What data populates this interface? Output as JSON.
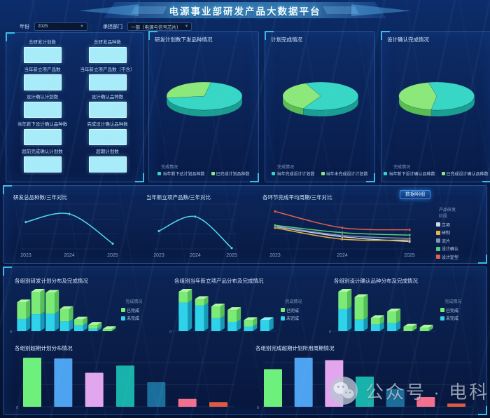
{
  "header": {
    "title": "电源事业部研发产品大数据平台"
  },
  "filters": {
    "year_label": "年份",
    "year_value": "2025",
    "dept_label": "承担部门",
    "dept_value": "一部（电源与信号芯片）"
  },
  "stats": {
    "items": [
      {
        "label": "总研发计划数"
      },
      {
        "label": "总研发品种数"
      },
      {
        "label": "当年新立项产品数"
      },
      {
        "label": "当年新立项产品数（不含）"
      },
      {
        "label": "设计确认计划数"
      },
      {
        "label": "设计确认品种数"
      },
      {
        "label": "当年新下设计确认品种数"
      },
      {
        "label": "完成设计确认品种数"
      },
      {
        "label": "超前完成确认计划数"
      },
      {
        "label": "超期计划数"
      }
    ]
  },
  "watermark": {
    "icon": "wechat-icon",
    "text": "公众号 · 电科芯片"
  },
  "colors": {
    "accent": "#41d2ff",
    "panel_border": "#3874c6",
    "stat_box": "#a9ecf9",
    "pie_teal": "#38d6c4",
    "pie_green": "#8ce87a",
    "line_cyan": "#4fd8f0"
  },
  "chart_data": [
    {
      "id": "pie-issue",
      "type": "pie",
      "title": "研发计划数下发品种情况",
      "legend_title": "完成情况",
      "rotate_deg": 280,
      "slices": [
        {
          "label": "当年新下达计划品种数",
          "value": 70,
          "color": "#38d6c4",
          "side_color": "#1b9e92"
        },
        {
          "label": "已完成计划品种数",
          "value": 30,
          "color": "#8ce87a",
          "side_color": "#58bd52"
        }
      ]
    },
    {
      "id": "pie-complete",
      "type": "pie",
      "title": "计划完成情况",
      "legend_title": "完成情况",
      "rotate_deg": 247,
      "slices": [
        {
          "label": "当年完成设计计划数",
          "value": 64,
          "color": "#38d6c4",
          "side_color": "#1b9e92"
        },
        {
          "label": "当年未完成设计计划数",
          "value": 36,
          "color": "#8ce87a",
          "side_color": "#58bd52"
        }
      ]
    },
    {
      "id": "pie-confirm",
      "type": "pie",
      "title": "设计确认完成情况",
      "legend_title": "完成情况",
      "rotate_deg": 257,
      "slices": [
        {
          "label": "当年新下设计确认品种数",
          "value": 56,
          "color": "#38d6c4",
          "side_color": "#1b9e92"
        },
        {
          "label": "已完成设计确认品种数",
          "value": 44,
          "color": "#8ce87a",
          "side_color": "#58bd52"
        }
      ]
    },
    {
      "id": "line-species",
      "type": "line",
      "title": "研发总品种数/三年对比",
      "x": [
        "2023",
        "2024",
        "2025"
      ],
      "ylim": [
        0,
        100
      ],
      "grid": true,
      "series": [
        {
          "name": "研发总品种数",
          "color": "#4fd8f0",
          "values": [
            60,
            78,
            12
          ]
        }
      ]
    },
    {
      "id": "line-newprod",
      "type": "line",
      "title": "当年新立项产品数/三年对比",
      "x": [
        "2023",
        "2024",
        "2025"
      ],
      "ylim": [
        0,
        100
      ],
      "grid": true,
      "series": [
        {
          "name": "当年新立项产品数",
          "color": "#4fd8f0",
          "values": [
            40,
            72,
            2
          ]
        }
      ]
    },
    {
      "id": "line-cycle",
      "type": "line",
      "title": "各环节完成平均周期/三年对比",
      "detail_button": "数据明细",
      "legend_title": "产品研发阶段",
      "legend_position": "right",
      "x": [
        "2023",
        "2024",
        "2025"
      ],
      "ylim": [
        0,
        110
      ],
      "grid": true,
      "series": [
        {
          "name": "立项",
          "color": "#cfd8e6",
          "values": [
            55,
            30,
            18
          ]
        },
        {
          "name": "研制",
          "color": "#e8b440",
          "values": [
            52,
            24,
            22
          ]
        },
        {
          "name": "流片",
          "color": "#7e93b8",
          "values": [
            56,
            33,
            26
          ]
        },
        {
          "name": "设计确认",
          "color": "#58c97c",
          "values": [
            58,
            40,
            34
          ]
        },
        {
          "name": "设计定型",
          "color": "#e2604e",
          "values": [
            92,
            52,
            47
          ]
        }
      ]
    },
    {
      "id": "stack-plan",
      "type": "bar",
      "variant": "stacked-3d",
      "title": "各组别研发计划分布及完成情况",
      "legend_title": "完成情况",
      "series": [
        {
          "name": "已完成",
          "color": "#7bea77",
          "top_color": "#b0f6a2",
          "side_color": "#55c057",
          "values": [
            35,
            47,
            44,
            26,
            12,
            8,
            4
          ]
        },
        {
          "name": "未完成",
          "color": "#2ed3ea",
          "top_color": "#8af2fa",
          "side_color": "#1899b8",
          "values": [
            25,
            35,
            36,
            20,
            12,
            5,
            0
          ]
        }
      ]
    },
    {
      "id": "stack-newprod",
      "type": "bar",
      "variant": "stacked-3d",
      "title": "各组别当年新立项产品分布及完成情况",
      "legend_title": "完成情况",
      "series": [
        {
          "name": "已完成",
          "color": "#7bea77",
          "top_color": "#b0f6a2",
          "side_color": "#55c057",
          "values": [
            24,
            14,
            26,
            26,
            14,
            0
          ]
        },
        {
          "name": "未完成",
          "color": "#2ed3ea",
          "top_color": "#8af2fa",
          "side_color": "#1899b8",
          "values": [
            62,
            56,
            28,
            20,
            10,
            24
          ]
        }
      ]
    },
    {
      "id": "stack-confirm",
      "type": "bar",
      "variant": "stacked-3d",
      "title": "各组别设计确认品种分布及完成情况",
      "legend_title": "完成情况",
      "series": [
        {
          "name": "已完成",
          "color": "#7bea77",
          "top_color": "#b0f6a2",
          "side_color": "#55c057",
          "values": [
            40,
            52,
            15,
            27,
            10,
            8
          ]
        },
        {
          "name": "未完成",
          "color": "#2ed3ea",
          "top_color": "#8af2fa",
          "side_color": "#1899b8",
          "values": [
            50,
            26,
            15,
            18,
            0,
            0
          ]
        }
      ]
    },
    {
      "id": "bar-overdue",
      "type": "bar",
      "title": "各组别超期计划分布情况",
      "grid": true,
      "values": [
        62,
        61,
        43,
        52,
        31,
        10,
        6
      ],
      "colors": [
        "#6ef07d",
        "#4da3f0",
        "#e2a6ee",
        "#18b2aa",
        "#1b6e9c",
        "#f2708e",
        "#de5a45"
      ]
    },
    {
      "id": "bar-cycle",
      "type": "bar",
      "title": "各组别完成超期计划所用周期情况",
      "grid": true,
      "values": [
        46,
        60,
        57,
        37,
        22,
        12,
        4
      ],
      "colors": [
        "#6ef07d",
        "#4da3f0",
        "#e2a6ee",
        "#18b2aa",
        "#1b6e9c",
        "#f2708e",
        "#de5a45"
      ]
    }
  ]
}
